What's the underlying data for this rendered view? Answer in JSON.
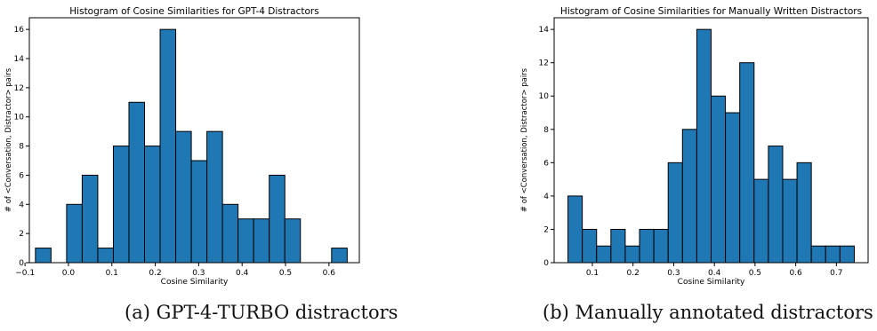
{
  "chart_data": [
    {
      "type": "bar",
      "title": "Histogram of Cosine Similarities for GPT-4 Distractors",
      "xlabel": "Cosine Similarity",
      "ylabel": "# of <Conversation, Distractor> pairs",
      "xlim": [
        -0.09,
        0.67
      ],
      "ylim": [
        0,
        16.8
      ],
      "xticks": [
        -0.1,
        0.0,
        0.1,
        0.2,
        0.3,
        0.4,
        0.5,
        0.6
      ],
      "xtick_labels": [
        "−0.1",
        "0.0",
        "0.1",
        "0.2",
        "0.3",
        "0.4",
        "0.5",
        "0.6"
      ],
      "yticks": [
        0,
        2,
        4,
        6,
        8,
        10,
        12,
        14,
        16
      ],
      "bin_start": -0.076,
      "bin_width": 0.0359,
      "counts": [
        1,
        0,
        4,
        6,
        1,
        8,
        11,
        8,
        16,
        9,
        7,
        9,
        4,
        3,
        3,
        6,
        3,
        0,
        0,
        1
      ],
      "bar_color": "#1f77b4",
      "grid": false,
      "caption_prefix": "(a) ",
      "caption_sc": "GPT-4-TURBO",
      "caption_suffix": " distractors"
    },
    {
      "type": "bar",
      "title": "Histogram of Cosine Similarities for Manually Written Distractors",
      "xlabel": "Cosine Similarity",
      "ylabel": "# of <Conversation, Distractor> pairs",
      "xlim": [
        0.006,
        0.778
      ],
      "ylim": [
        0,
        14.7
      ],
      "xticks": [
        0.1,
        0.2,
        0.3,
        0.4,
        0.5,
        0.6,
        0.7
      ],
      "xtick_labels": [
        "0.1",
        "0.2",
        "0.3",
        "0.4",
        "0.5",
        "0.6",
        "0.7"
      ],
      "yticks": [
        0,
        2,
        4,
        6,
        8,
        10,
        12,
        14
      ],
      "bin_start": 0.04,
      "bin_width": 0.0352,
      "counts": [
        4,
        2,
        1,
        2,
        1,
        2,
        2,
        6,
        8,
        14,
        10,
        9,
        12,
        5,
        7,
        5,
        6,
        1,
        1,
        1
      ],
      "bar_color": "#1f77b4",
      "grid": false,
      "caption_prefix": "(b) ",
      "caption_sc": "",
      "caption_suffix": "Manually annotated distractors"
    }
  ]
}
